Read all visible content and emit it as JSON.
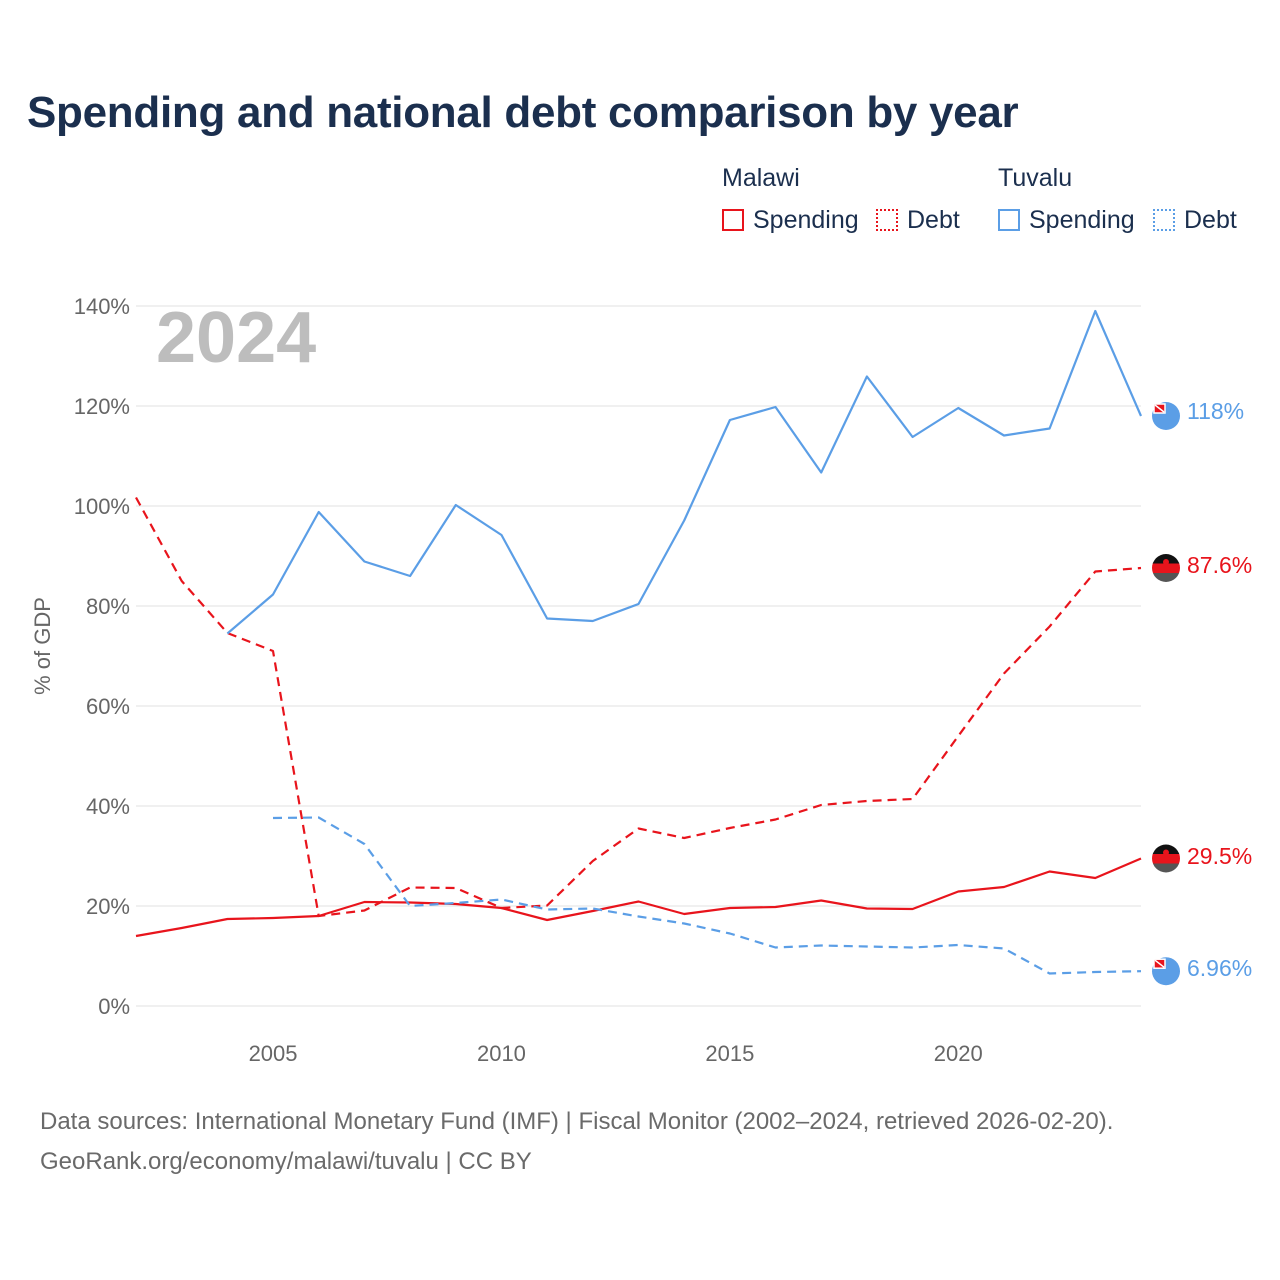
{
  "title": "Spending and national debt comparison by year",
  "legend": {
    "groups": [
      {
        "name": "Malawi",
        "items": [
          "Spending",
          "Debt"
        ]
      },
      {
        "name": "Tuvalu",
        "items": [
          "Spending",
          "Debt"
        ]
      }
    ]
  },
  "colors": {
    "malawi": "#e8141c",
    "tuvalu": "#5b9ee6",
    "grid": "#e6e6e6",
    "axis_text": "#666666",
    "year_watermark": "#bdbdbd"
  },
  "year_label": "2024",
  "end_labels": {
    "tuvalu_spending": "118%",
    "malawi_debt": "87.6%",
    "malawi_spending": "29.5%",
    "tuvalu_debt": "6.96%"
  },
  "footer": {
    "line1": "Data sources: International Monetary Fund (IMF) | Fiscal Monitor (2002–2024, retrieved 2026-02-20).",
    "line2": "GeoRank.org/economy/malawi/tuvalu | CC BY"
  },
  "chart_data": {
    "type": "line",
    "title": "Spending and national debt comparison by year",
    "xlabel": "",
    "ylabel": "% of GDP",
    "xlim": [
      2002,
      2024
    ],
    "ylim": [
      0,
      140
    ],
    "x_ticks": [
      2005,
      2010,
      2015,
      2020
    ],
    "y_ticks": [
      0,
      20,
      40,
      60,
      80,
      100,
      120,
      140
    ],
    "y_tick_labels": [
      "0%",
      "20%",
      "40%",
      "60%",
      "80%",
      "100%",
      "120%",
      "140%"
    ],
    "grid": true,
    "legend_position": "top-right",
    "series": [
      {
        "name": "Malawi Spending",
        "country": "Malawi",
        "metric": "Spending",
        "style": "solid",
        "color": "#e8141c",
        "x": [
          2002,
          2003,
          2004,
          2005,
          2006,
          2007,
          2008,
          2009,
          2010,
          2011,
          2012,
          2013,
          2014,
          2015,
          2016,
          2017,
          2018,
          2019,
          2020,
          2021,
          2022,
          2023,
          2024
        ],
        "values": [
          14,
          15.6,
          17.4,
          17.6,
          18,
          20.8,
          20.7,
          20.4,
          19.6,
          17.2,
          19,
          20.9,
          18.4,
          19.6,
          19.8,
          21.1,
          19.5,
          19.4,
          22.9,
          23.8,
          26.9,
          25.6,
          29.5
        ]
      },
      {
        "name": "Malawi Debt",
        "country": "Malawi",
        "metric": "Debt",
        "style": "dashed",
        "color": "#e8141c",
        "x": [
          2002,
          2003,
          2004,
          2005,
          2006,
          2007,
          2008,
          2009,
          2010,
          2011,
          2012,
          2013,
          2014,
          2015,
          2016,
          2017,
          2018,
          2019,
          2020,
          2021,
          2022,
          2023,
          2024
        ],
        "values": [
          101.7,
          85,
          74.6,
          71,
          18,
          19.1,
          23.7,
          23.6,
          19.6,
          20.1,
          29,
          35.5,
          33.6,
          35.6,
          37.3,
          40.2,
          41,
          41.4,
          54,
          66.5,
          75.9,
          86.9,
          87.6
        ]
      },
      {
        "name": "Tuvalu Spending",
        "country": "Tuvalu",
        "metric": "Spending",
        "style": "solid",
        "color": "#5b9ee6",
        "x": [
          2004,
          2005,
          2006,
          2007,
          2008,
          2009,
          2010,
          2011,
          2012,
          2013,
          2014,
          2015,
          2016,
          2017,
          2018,
          2019,
          2020,
          2021,
          2022,
          2023,
          2024
        ],
        "values": [
          74.5,
          82.3,
          98.8,
          88.9,
          86,
          100.2,
          94.2,
          77.5,
          77,
          80.4,
          97.1,
          117.2,
          119.8,
          106.7,
          125.9,
          113.8,
          119.6,
          114.1,
          115.5,
          139,
          118
        ]
      },
      {
        "name": "Tuvalu Debt",
        "country": "Tuvalu",
        "metric": "Debt",
        "style": "dashed",
        "color": "#5b9ee6",
        "x": [
          2005,
          2006,
          2007,
          2008,
          2009,
          2010,
          2011,
          2012,
          2013,
          2014,
          2015,
          2016,
          2017,
          2018,
          2019,
          2020,
          2021,
          2022,
          2023,
          2024
        ],
        "values": [
          37.6,
          37.7,
          32.4,
          20,
          20.6,
          21.3,
          19.3,
          19.5,
          17.9,
          16.5,
          14.5,
          11.7,
          12.1,
          11.9,
          11.7,
          12.2,
          11.5,
          6.5,
          6.8,
          6.96
        ]
      }
    ]
  }
}
